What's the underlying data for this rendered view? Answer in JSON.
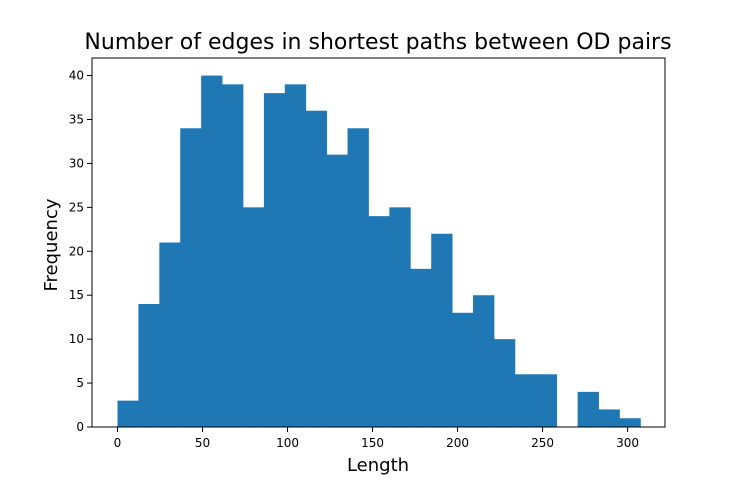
{
  "chart_data": {
    "type": "bar",
    "title": "Number of edges in shortest paths between OD pairs",
    "xlabel": "Length",
    "ylabel": "Frequency",
    "xlim": [
      -15,
      322
    ],
    "ylim": [
      0,
      42
    ],
    "xticks": [
      0,
      50,
      100,
      150,
      200,
      250,
      300
    ],
    "yticks": [
      0,
      5,
      10,
      15,
      20,
      25,
      30,
      35,
      40
    ],
    "bin_edges": [
      0,
      12.3,
      24.6,
      36.9,
      49.2,
      61.5,
      73.8,
      86.1,
      98.4,
      110.7,
      123.0,
      135.3,
      147.6,
      159.9,
      172.2,
      184.5,
      196.8,
      209.1,
      221.4,
      233.7,
      246.0,
      258.3,
      270.6,
      282.9,
      295.2,
      307.5
    ],
    "values": [
      3,
      14,
      21,
      34,
      40,
      39,
      25,
      38,
      39,
      36,
      31,
      34,
      24,
      25,
      18,
      22,
      13,
      15,
      10,
      6,
      6,
      0,
      4,
      2,
      1
    ],
    "bar_color": "#1f77b4",
    "grid": false,
    "legend": "none"
  }
}
